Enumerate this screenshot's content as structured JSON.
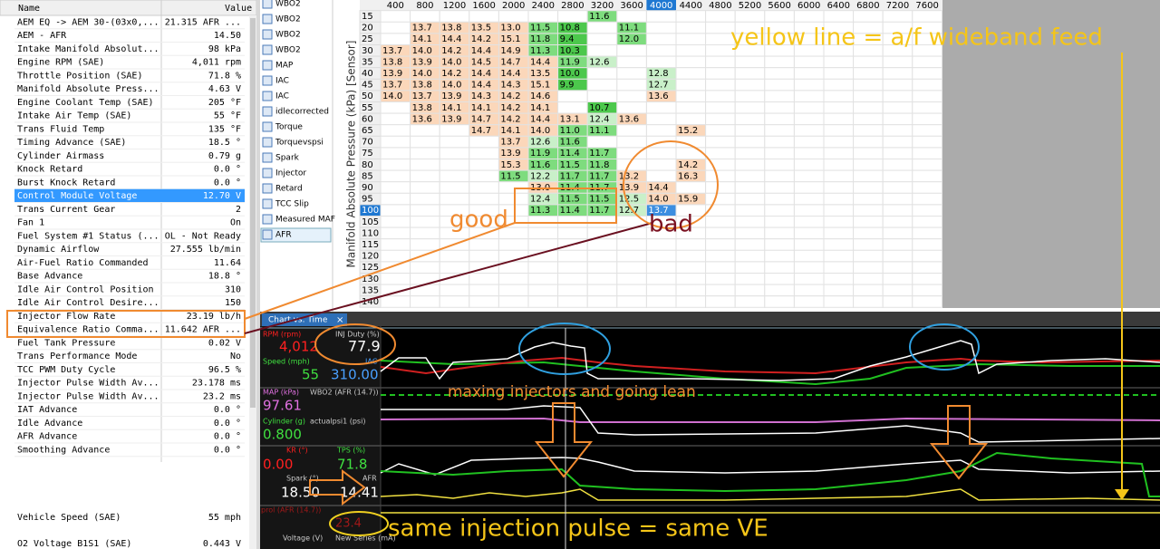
{
  "data_table": {
    "headers": [
      "Name",
      "Value"
    ],
    "rows": [
      [
        "AEM EQ -> AEM 30-(03x0,...",
        "21.315 AFR ..."
      ],
      [
        "AEM - AFR",
        "14.50"
      ],
      [
        "Intake Manifold Absolut...",
        "98 kPa"
      ],
      [
        "Engine RPM (SAE)",
        "4,011 rpm"
      ],
      [
        "Throttle Position (SAE)",
        "71.8 %"
      ],
      [
        "Manifold Absolute Press...",
        "4.63 V"
      ],
      [
        "Engine Coolant Temp (SAE)",
        "205 °F"
      ],
      [
        "Intake Air Temp (SAE)",
        "55 °F"
      ],
      [
        "Trans Fluid Temp",
        "135 °F"
      ],
      [
        "Timing Advance (SAE)",
        "18.5 °"
      ],
      [
        "Cylinder Airmass",
        "0.79 g"
      ],
      [
        "Knock Retard",
        "0.0 °"
      ],
      [
        "Burst Knock Retard",
        "0.0 °"
      ],
      [
        "Control Module Voltage",
        "12.70 V"
      ],
      [
        "Trans Current Gear",
        "2"
      ],
      [
        "Fan 1",
        "On"
      ],
      [
        "Fuel System #1 Status (...",
        "OL - Not Ready"
      ],
      [
        "Dynamic Airflow",
        "27.555 lb/min"
      ],
      [
        "Air-Fuel Ratio Commanded",
        "11.64"
      ],
      [
        "Base Advance",
        "18.8 °"
      ],
      [
        "Idle Air Control Position",
        "310"
      ],
      [
        "Idle Air Control Desire...",
        "150"
      ],
      [
        "Injector Flow Rate",
        "23.19 lb/h"
      ],
      [
        "Equivalence Ratio Comma...",
        "11.642 AFR ..."
      ],
      [
        "Fuel Tank Pressure",
        "0.02 V"
      ],
      [
        "Trans Performance Mode",
        "No"
      ],
      [
        "TCC PWM Duty Cycle",
        "96.5 %"
      ],
      [
        "Injector Pulse Width Av...",
        "23.178 ms"
      ],
      [
        "Injector Pulse Width Av...",
        "23.2 ms"
      ],
      [
        "IAT Advance",
        "0.0 °"
      ],
      [
        "Idle Advance",
        "0.0 °"
      ],
      [
        "AFR Advance",
        "0.0 °"
      ],
      [
        "Smoothing Advance",
        "0.0 °"
      ]
    ],
    "lower_rows": [
      [
        "Vehicle Speed (SAE)",
        "55 mph"
      ],
      [
        "O2 Voltage B1S1 (SAE)",
        "0.443 V"
      ]
    ]
  },
  "layers": [
    "WBO2",
    "WBO2",
    "WBO2",
    "WBO2",
    "MAP",
    "IAC",
    "IAC",
    "idlecorrected",
    "Torque",
    "Torquevspsi",
    "Spark",
    "Injector",
    "Retard",
    "TCC Slip",
    "Measured MAF",
    "AFR"
  ],
  "grid": {
    "y_axis_label": "Manifold Absolute Pressure (kPa) [Sensor]",
    "columns": [
      "400",
      "800",
      "1200",
      "1600",
      "2000",
      "2400",
      "2800",
      "3200",
      "3600",
      "4000",
      "4400",
      "4800",
      "5200",
      "5600",
      "6000",
      "6400",
      "6800",
      "7200",
      "7600"
    ],
    "rows": [
      {
        "label": "15",
        "cells": {
          "3200": "11.6"
        }
      },
      {
        "label": "20",
        "cells": {
          "800": "13.7",
          "1200": "13.8",
          "1600": "13.5",
          "2000": "13.0",
          "2400": "11.5",
          "2800": "10.8",
          "3600": "11.1"
        }
      },
      {
        "label": "25",
        "cells": {
          "800": "14.1",
          "1200": "14.4",
          "1600": "14.2",
          "2000": "15.1",
          "2400": "11.8",
          "2800": "9.4",
          "3600": "12.0"
        }
      },
      {
        "label": "30",
        "cells": {
          "400": "13.7",
          "800": "14.0",
          "1200": "14.2",
          "1600": "14.4",
          "2000": "14.9",
          "2400": "11.3",
          "2800": "10.3"
        }
      },
      {
        "label": "35",
        "cells": {
          "400": "13.8",
          "800": "13.9",
          "1200": "14.0",
          "1600": "14.5",
          "2000": "14.7",
          "2400": "14.4",
          "2800": "11.9",
          "3200": "12.6"
        }
      },
      {
        "label": "40",
        "cells": {
          "400": "13.9",
          "800": "14.0",
          "1200": "14.2",
          "1600": "14.4",
          "2000": "14.4",
          "2400": "13.5",
          "2800": "10.0",
          "4000": "12.8"
        }
      },
      {
        "label": "45",
        "cells": {
          "400": "13.7",
          "800": "13.8",
          "1200": "14.0",
          "1600": "14.4",
          "2000": "14.3",
          "2400": "15.1",
          "2800": "9.9",
          "4000": "12.7"
        }
      },
      {
        "label": "50",
        "cells": {
          "400": "14.0",
          "800": "13.7",
          "1200": "13.9",
          "1600": "14.3",
          "2000": "14.2",
          "2400": "14.6",
          "4000": "13.6"
        }
      },
      {
        "label": "55",
        "cells": {
          "800": "13.8",
          "1200": "14.1",
          "1600": "14.1",
          "2000": "14.2",
          "2400": "14.1",
          "3200": "10.7"
        }
      },
      {
        "label": "60",
        "cells": {
          "800": "13.6",
          "1200": "13.9",
          "1600": "14.7",
          "2000": "14.2",
          "2400": "14.4",
          "2800": "13.1",
          "3200": "12.4",
          "3600": "13.6"
        }
      },
      {
        "label": "65",
        "cells": {
          "1600": "14.7",
          "2000": "14.1",
          "2400": "14.0",
          "2800": "11.0",
          "3200": "11.1",
          "4400": "15.2"
        }
      },
      {
        "label": "70",
        "cells": {
          "2000": "13.7",
          "2400": "12.6",
          "2800": "11.6"
        }
      },
      {
        "label": "75",
        "cells": {
          "2000": "13.9",
          "2400": "11.9",
          "2800": "11.4",
          "3200": "11.7"
        }
      },
      {
        "label": "80",
        "cells": {
          "2000": "15.3",
          "2400": "11.6",
          "2800": "11.5",
          "3200": "11.8",
          "4400": "14.2"
        }
      },
      {
        "label": "85",
        "cells": {
          "2000": "11.5",
          "2400": "12.2",
          "2800": "11.7",
          "3200": "11.7",
          "3600": "13.2",
          "4400": "16.3"
        }
      },
      {
        "label": "90",
        "cells": {
          "2400": "13.0",
          "2800": "11.4",
          "3200": "11.7",
          "3600": "13.9",
          "4000": "14.4"
        }
      },
      {
        "label": "95",
        "cells": {
          "2400": "12.4",
          "2800": "11.5",
          "3200": "11.5",
          "3600": "12.5",
          "4000": "14.0",
          "4400": "15.9"
        }
      },
      {
        "label": "100",
        "cells": {
          "2400": "11.3",
          "2800": "11.4",
          "3200": "11.7",
          "3600": "12.7",
          "4000": "13.7"
        }
      },
      {
        "label": "105",
        "cells": {}
      },
      {
        "label": "110",
        "cells": {}
      },
      {
        "label": "115",
        "cells": {}
      },
      {
        "label": "120",
        "cells": {}
      },
      {
        "label": "125",
        "cells": {}
      },
      {
        "label": "130",
        "cells": {}
      },
      {
        "label": "135",
        "cells": {}
      },
      {
        "label": "140",
        "cells": {}
      }
    ]
  },
  "chart": {
    "tab": "Chart vs. Time",
    "gauges": [
      {
        "label": "RPM (rpm)",
        "value": "4,012"
      },
      {
        "label": "INJ Duty (%)",
        "value": "77.9"
      },
      {
        "label": "Speed (mph)",
        "value": "55"
      },
      {
        "label": "IAC",
        "value": "310.00"
      },
      {
        "label": "MAP (kPa)",
        "value": "97.61"
      },
      {
        "label": "WBO2 (AFR (14.7))"
      },
      {
        "label": "Cylinder (g)",
        "value": "0.800"
      },
      {
        "label": "actualpsi1 (psi)"
      },
      {
        "label": "KR (°)",
        "value": "0.00"
      },
      {
        "label": "TPS (%)",
        "value": "71.8"
      },
      {
        "label": "Spark (°)",
        "value": "18.50"
      },
      {
        "label": "AFR",
        "value": "14.41"
      },
      {
        "label": "prol (AFR (14.7))",
        "value": "23.4"
      },
      {
        "label": "Voltage (V)"
      },
      {
        "label": "New Series (mA)"
      }
    ]
  },
  "annotations": [
    "yellow line = a/f wideband feed",
    "good",
    "bad",
    "maxing injectors and going lean",
    "same injection pulse = same VE"
  ]
}
